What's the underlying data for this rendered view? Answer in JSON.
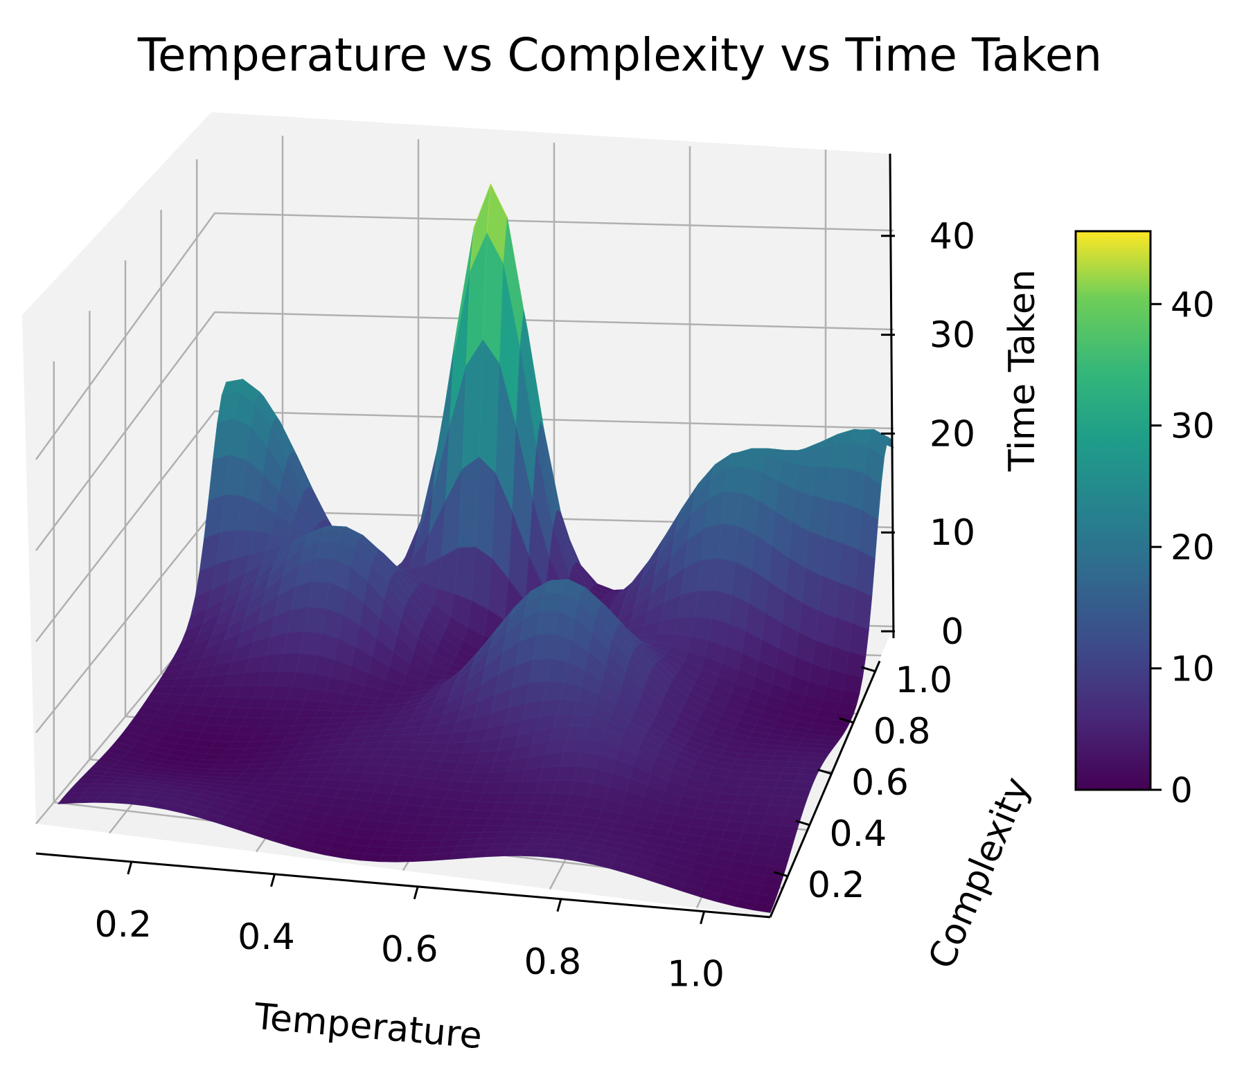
{
  "chart_data": {
    "type": "surface3d",
    "title": "Temperature vs Complexity vs Time Taken",
    "xlabel": "Temperature",
    "ylabel": "Complexity",
    "zlabel": "Time Taken",
    "x_ticks": [
      "0.2",
      "0.4",
      "0.6",
      "0.8",
      "1.0"
    ],
    "y_ticks": [
      "0.2",
      "0.4",
      "0.6",
      "0.8",
      "1.0"
    ],
    "z_ticks": [
      "0",
      "10",
      "20",
      "30",
      "40"
    ],
    "xlim": [
      0.0,
      1.0
    ],
    "ylim": [
      0.0,
      1.0
    ],
    "zlim": [
      0,
      45
    ],
    "colormap": "viridis",
    "colorbar": {
      "ticks": [
        "0",
        "10",
        "20",
        "30",
        "40"
      ],
      "range": [
        0,
        46
      ]
    },
    "surface_peaks": [
      {
        "x": 0.42,
        "y": 0.95,
        "z": 44
      },
      {
        "x": 0.05,
        "y": 0.95,
        "z": 25
      },
      {
        "x": 0.6,
        "y": 0.55,
        "z": 16
      },
      {
        "x": 0.78,
        "y": 0.9,
        "z": 19
      },
      {
        "x": 0.98,
        "y": 0.95,
        "z": 19
      },
      {
        "x": 0.25,
        "y": 0.75,
        "z": 14
      },
      {
        "x": 0.7,
        "y": 0.35,
        "z": 8
      }
    ]
  }
}
